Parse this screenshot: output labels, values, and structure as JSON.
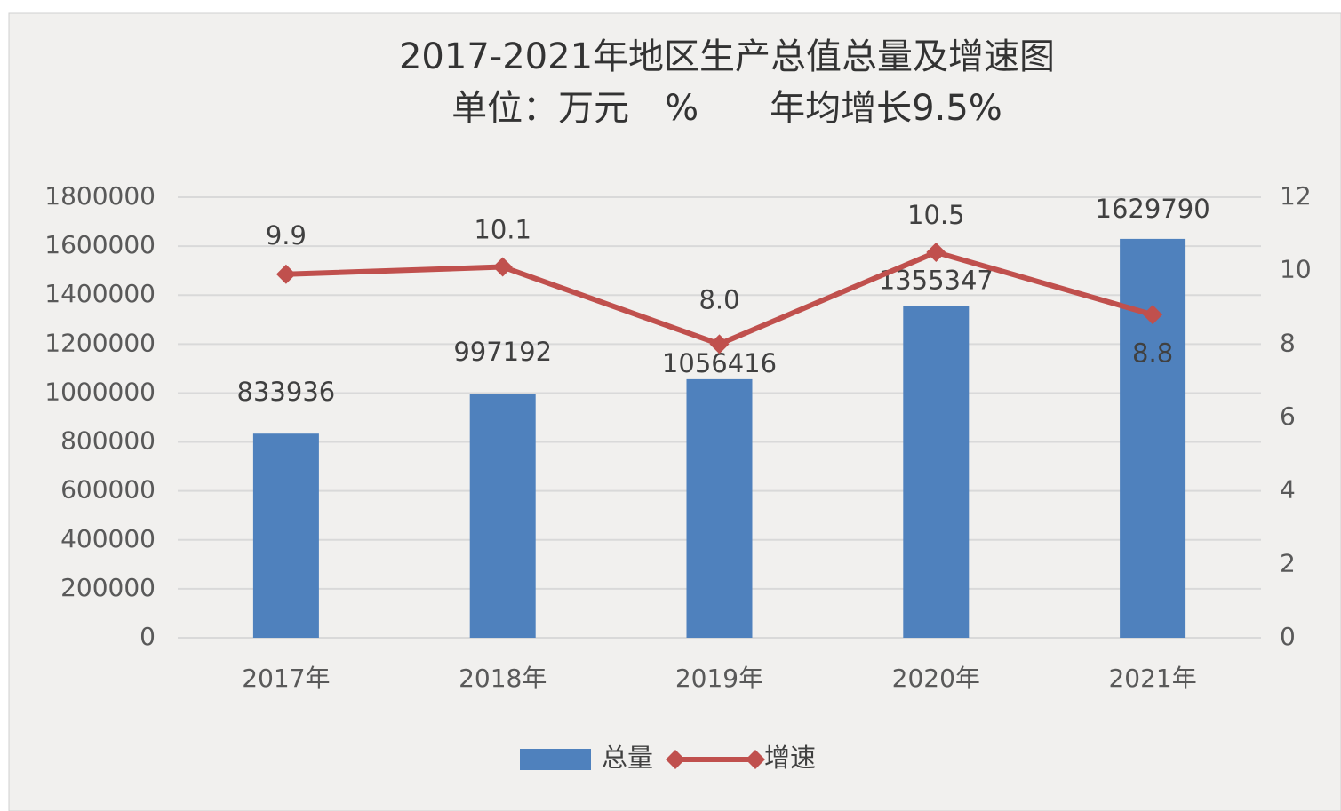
{
  "chart_data": {
    "type": "bar",
    "title": "2017-2021年地区生产总值总量及增速图",
    "subtitle": "单位：万元　%　　年均增长9.5%",
    "categories": [
      "2017年",
      "2018年",
      "2019年",
      "2020年",
      "2021年"
    ],
    "series": [
      {
        "name": "总量",
        "type": "bar",
        "color": "#4f81bd",
        "values": [
          833936,
          997192,
          1056416,
          1355347,
          1629790
        ]
      },
      {
        "name": "增速",
        "type": "line",
        "axis": "y2",
        "color": "#c0504d",
        "values": [
          9.9,
          10.1,
          8.0,
          10.5,
          8.8
        ],
        "value_labels": [
          "9.9",
          "10.1",
          "8.0",
          "10.5",
          "8.8"
        ]
      }
    ],
    "ylim": [
      0,
      1800000
    ],
    "yticks": [
      0,
      200000,
      400000,
      600000,
      800000,
      1000000,
      1200000,
      1400000,
      1600000,
      1800000
    ],
    "y2lim": [
      0,
      12
    ],
    "y2ticks": [
      0,
      2,
      4,
      6,
      8,
      10,
      12
    ],
    "grid": true,
    "legend": "bottom"
  }
}
